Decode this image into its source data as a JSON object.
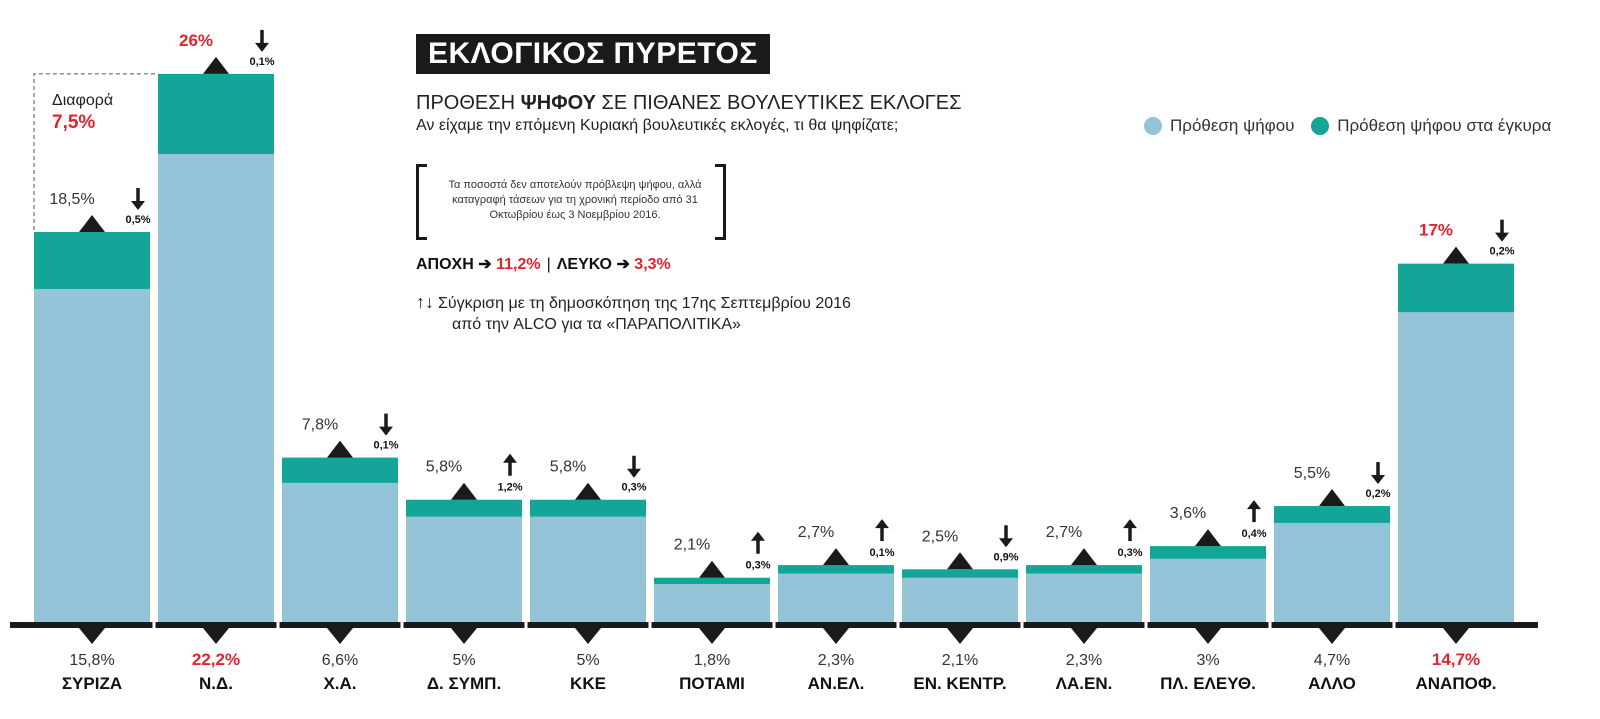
{
  "title": "ΕΚΛΟΓΙΚΟΣ ΠΥΡΕΤΟΣ",
  "subtitle": {
    "pre": "ΠΡΟΘΕΣΗ ",
    "bold": "ΨΗΦΟΥ",
    "post": " ΣΕ ΠΙΘΑΝΕΣ ΒΟΥΛΕΥΤΙΚΕΣ ΕΚΛΟΓΕΣ"
  },
  "question": "Αν είχαμε την επόμενη Κυριακή βουλευτικές εκλογές, τι θα ψηφίζατε;",
  "note": "Τα ποσοστά δεν αποτελούν πρόβλεψη ψήφου, αλλά καταγραφή τάσεων για τη χρονική περίοδο από 31 Οκτωβρίου έως 3 Νοεμβρίου 2016.",
  "abstention": {
    "label": "ΑΠΟΧΗ ➔ ",
    "value": "11,2%",
    "sep": "|",
    "blank_label": "ΛΕΥΚΟ ➔ ",
    "blank_value": "3,3%"
  },
  "comparison": {
    "arrows": "↑↓",
    "line1": "Σύγκριση με τη δημοσκόπηση της 17ης Σεπτεμβρίου 2016",
    "line2": "από την ALCO για τα «ΠΑΡΑΠΟΛΙΤΙΚΑ»"
  },
  "difference": {
    "label": "Διαφορά",
    "value": "7,5%"
  },
  "colors": {
    "intention": "#95c4d8",
    "valid": "#12a598",
    "highlight": "#e0242e",
    "dark": "#1a1a1a"
  },
  "chart_data": {
    "type": "bar",
    "stacked_overlap": true,
    "ylim": [
      0,
      26
    ],
    "categories": [
      "ΣΥΡΙΖΑ",
      "Ν.Δ.",
      "Χ.Α.",
      "Δ. ΣΥΜΠ.",
      "ΚΚΕ",
      "ΠΟΤΑΜΙ",
      "ΑΝ.ΕΛ.",
      "ΕΝ. ΚΕΝΤΡ.",
      "ΛΑ.ΕΝ.",
      "ΠΛ. ΕΛΕΥΘ.",
      "ΑΛΛΟ",
      "ΑΝΑΠΟΦ."
    ],
    "series": [
      {
        "name": "Πρόθεση ψήφου",
        "values": [
          15.8,
          22.2,
          6.6,
          5,
          5,
          1.8,
          2.3,
          2.1,
          2.3,
          3,
          4.7,
          14.7
        ],
        "labels": [
          "15,8%",
          "22,2%",
          "6,6%",
          "5%",
          "5%",
          "1,8%",
          "2,3%",
          "2,1%",
          "2,3%",
          "3%",
          "4,7%",
          "14,7%"
        ]
      },
      {
        "name": "Πρόθεση ψήφου στα έγκυρα",
        "values": [
          18.5,
          26,
          7.8,
          5.8,
          5.8,
          2.1,
          2.7,
          2.5,
          2.7,
          3.6,
          5.5,
          17
        ],
        "labels": [
          "18,5%",
          "26%",
          "7,8%",
          "5,8%",
          "5,8%",
          "2,1%",
          "2,7%",
          "2,5%",
          "2,7%",
          "3,6%",
          "5,5%",
          "17%"
        ]
      }
    ],
    "changes": [
      {
        "dir": "down",
        "label": "0,5%"
      },
      {
        "dir": "down",
        "label": "0,1%"
      },
      {
        "dir": "down",
        "label": "0,1%"
      },
      {
        "dir": "up",
        "label": "1,2%"
      },
      {
        "dir": "down",
        "label": "0,3%"
      },
      {
        "dir": "up",
        "label": "0,3%"
      },
      {
        "dir": "up",
        "label": "0,1%"
      },
      {
        "dir": "down",
        "label": "0,9%"
      },
      {
        "dir": "up",
        "label": "0,3%"
      },
      {
        "dir": "up",
        "label": "0,4%"
      },
      {
        "dir": "down",
        "label": "0,2%"
      },
      {
        "dir": "down",
        "label": "0,2%"
      }
    ],
    "highlighted": [
      1,
      11
    ],
    "legend_position": "top-right",
    "grid": false
  }
}
